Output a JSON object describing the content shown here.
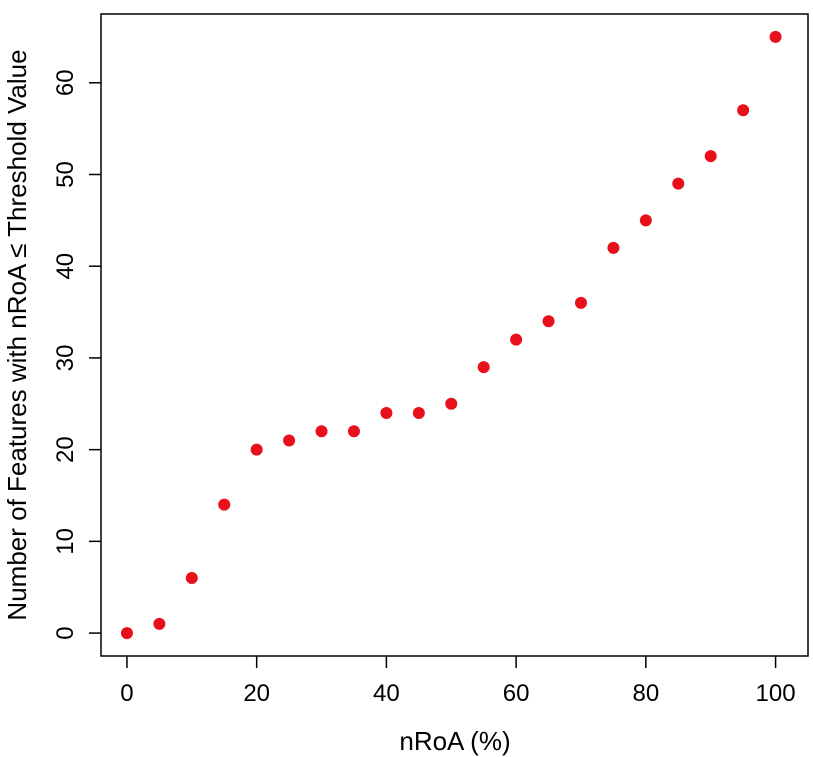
{
  "chart_data": {
    "type": "scatter",
    "title": "",
    "xlabel": "nRoA (%)",
    "ylabel": "Number of Features with nRoA ≤ Threshold Value",
    "xlim": [
      -4,
      105
    ],
    "ylim": [
      -2.5,
      67.5
    ],
    "xticks": [
      0,
      20,
      40,
      60,
      80,
      100
    ],
    "yticks": [
      0,
      10,
      20,
      30,
      40,
      50,
      60
    ],
    "grid": false,
    "legend": "none",
    "marker_color": "#e8101a",
    "x": [
      0,
      5,
      10,
      15,
      20,
      25,
      30,
      35,
      40,
      45,
      50,
      55,
      60,
      65,
      70,
      75,
      80,
      85,
      90,
      95,
      100
    ],
    "y": [
      0,
      1,
      6,
      14,
      20,
      21,
      22,
      22,
      24,
      24,
      25,
      29,
      32,
      34,
      36,
      42,
      45,
      49,
      52,
      57,
      65
    ]
  }
}
